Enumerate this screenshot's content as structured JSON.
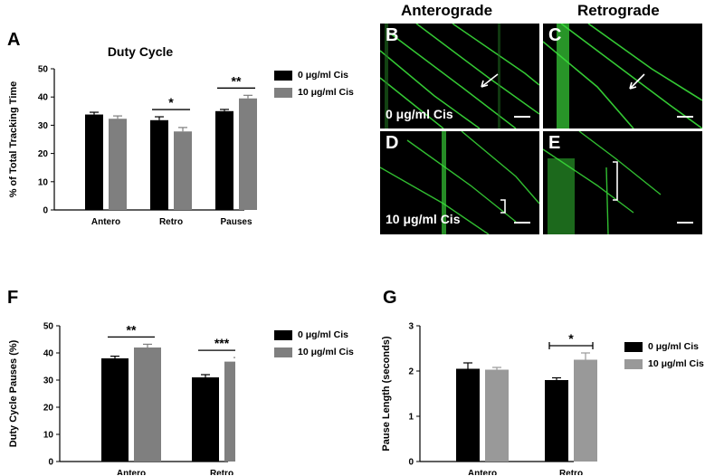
{
  "panels": {
    "A": "A",
    "B": "B",
    "C": "C",
    "D": "D",
    "E": "E",
    "F": "F",
    "G": "G"
  },
  "microscopy": {
    "col_titles": [
      "Anterograde",
      "Retrograde"
    ],
    "cond_top": "0 μg/ml Cis",
    "cond_bottom": "10 μg/ml Cis"
  },
  "legend": {
    "s0": "0 μg/ml Cis",
    "s1": "10 μg/ml Cis"
  },
  "colors": {
    "series0": "#000000",
    "series1_A": "#7f7f7f",
    "series1_F": "#7f7f7f",
    "series1_G": "#999999",
    "micro_green": "#3adf3a"
  },
  "chart_data": [
    {
      "id": "A",
      "type": "bar",
      "title": "Duty Cycle",
      "ylabel": "% of Total Tracking Time",
      "xlabel": "",
      "categories": [
        "Antero",
        "Retro",
        "Pauses"
      ],
      "ylim": [
        0,
        50
      ],
      "yticks": [
        0,
        10,
        20,
        30,
        40,
        50
      ],
      "series": [
        {
          "name": "0 μg/ml Cis",
          "values": [
            33.8,
            31.8,
            35.0
          ],
          "errors": [
            0.8,
            1.2,
            0.6
          ]
        },
        {
          "name": "10 μg/ml Cis",
          "values": [
            32.3,
            27.8,
            39.5
          ],
          "errors": [
            1.0,
            1.4,
            1.1
          ]
        }
      ],
      "significance": [
        {
          "category": "Retro",
          "label": "*"
        },
        {
          "category": "Pauses",
          "label": "**"
        }
      ],
      "grid": false,
      "legend_position": "right"
    },
    {
      "id": "F",
      "type": "bar",
      "title": "",
      "ylabel": "Duty Cycle Pauses (%)",
      "xlabel": "",
      "categories": [
        "Antero",
        "Retro"
      ],
      "ylim": [
        0,
        50
      ],
      "yticks": [
        0,
        10,
        20,
        30,
        40,
        50
      ],
      "series": [
        {
          "name": "0 μg/ml Cis",
          "values": [
            38.0,
            31.0
          ],
          "errors": [
            0.8,
            1.0
          ]
        },
        {
          "name": "10 μg/ml Cis",
          "values": [
            42.0,
            36.8
          ],
          "errors": [
            1.2,
            1.5
          ]
        }
      ],
      "significance": [
        {
          "category": "Antero",
          "label": "**"
        },
        {
          "category": "Retro",
          "label": "***"
        }
      ],
      "grid": false,
      "legend_position": "right"
    },
    {
      "id": "G",
      "type": "bar",
      "title": "",
      "ylabel": "Pause Length (seconds)",
      "xlabel": "",
      "categories": [
        "Antero",
        "Retro"
      ],
      "ylim": [
        0,
        3
      ],
      "yticks": [
        0,
        1,
        2,
        3
      ],
      "series": [
        {
          "name": "0 μg/ml Cis",
          "values": [
            2.05,
            1.8
          ],
          "errors": [
            0.13,
            0.05
          ]
        },
        {
          "name": "10 μg/ml Cis",
          "values": [
            2.03,
            2.25
          ],
          "errors": [
            0.05,
            0.15
          ]
        }
      ],
      "significance": [
        {
          "category": "Retro",
          "label": "*"
        }
      ],
      "grid": false,
      "legend_position": "right"
    }
  ]
}
